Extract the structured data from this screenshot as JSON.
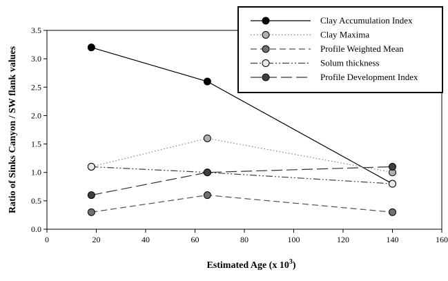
{
  "chart_data": {
    "type": "line",
    "title": "",
    "xlabel": "Estimated Age (x 10",
    "xlabel_sup": "3",
    "xlabel_suffix": ")",
    "ylabel": "Ratio of Sinks Canyon / SW flank values",
    "xlim": [
      0,
      160
    ],
    "ylim": [
      0.0,
      3.5
    ],
    "x_ticks": [
      "0",
      "20",
      "40",
      "60",
      "80",
      "100",
      "120",
      "140",
      "160"
    ],
    "y_ticks": [
      "0.0",
      "0.5",
      "1.0",
      "1.5",
      "2.0",
      "2.5",
      "3.0",
      "3.5"
    ],
    "x": [
      18,
      65,
      140
    ],
    "grid": false,
    "legend_position": "top-right",
    "series": [
      {
        "name": "Clay Accumulation Index",
        "values": [
          3.2,
          2.6,
          0.8
        ],
        "line_style": "solid",
        "marker_color": "#000000",
        "line_color": "#000000"
      },
      {
        "name": "Clay Maxima",
        "values": [
          1.1,
          1.6,
          1.0
        ],
        "line_style": "dotted",
        "marker_color": "#b0b0b0",
        "line_color": "#808080"
      },
      {
        "name": "Profile Weighted Mean",
        "values": [
          0.3,
          0.6,
          0.3
        ],
        "line_style": "dashed",
        "marker_color": "#707070",
        "line_color": "#505050"
      },
      {
        "name": "Solum thickness",
        "values": [
          1.1,
          1.0,
          0.8
        ],
        "line_style": "dashdotdot",
        "marker_color": "#e8e8e8",
        "line_color": "#404040"
      },
      {
        "name": "Profile Development Index",
        "values": [
          0.6,
          1.0,
          1.1
        ],
        "line_style": "longdash",
        "marker_color": "#404040",
        "line_color": "#303030"
      }
    ]
  }
}
